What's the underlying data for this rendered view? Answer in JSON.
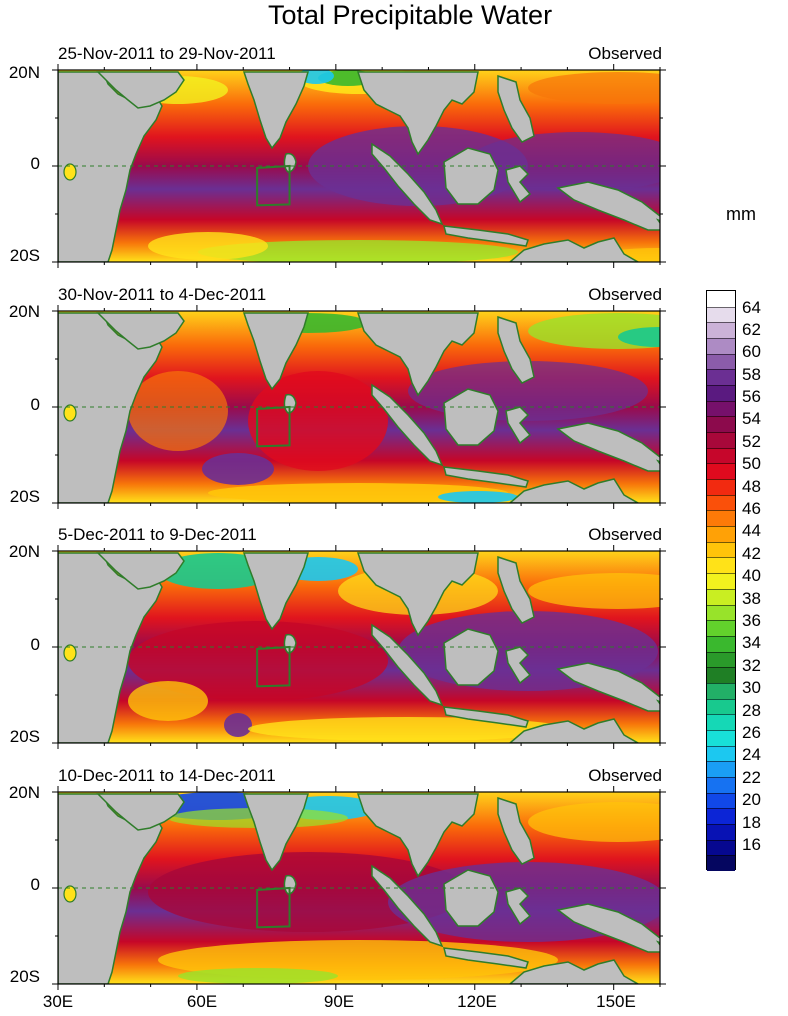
{
  "title": "Total Precipitable Water",
  "units": "mm",
  "panels": [
    {
      "date_range": "25-Nov-2011 to 29-Nov-2011",
      "label": "Observed"
    },
    {
      "date_range": "30-Nov-2011 to 4-Dec-2011",
      "label": "Observed"
    },
    {
      "date_range": "5-Dec-2011 to 9-Dec-2011",
      "label": "Observed"
    },
    {
      "date_range": "10-Dec-2011 to 14-Dec-2011",
      "label": "Observed"
    }
  ],
  "lat_labels": [
    "20N",
    "0",
    "20S"
  ],
  "lon_labels": [
    "30E",
    "60E",
    "90E",
    "120E",
    "150E"
  ],
  "colorbar": {
    "labels": [
      "64",
      "62",
      "60",
      "58",
      "56",
      "54",
      "52",
      "50",
      "48",
      "46",
      "44",
      "42",
      "40",
      "38",
      "36",
      "34",
      "32",
      "30",
      "28",
      "26",
      "24",
      "22",
      "20",
      "18",
      "16"
    ],
    "colors": [
      "#ffffff",
      "#e6dcec",
      "#cbb2d8",
      "#ad8bc4",
      "#8b5caa",
      "#6b2f93",
      "#5a1a80",
      "#76106b",
      "#8c0a4c",
      "#a8083a",
      "#c6062b",
      "#e00a1e",
      "#f22a10",
      "#fa500a",
      "#fd7a08",
      "#ffa106",
      "#ffc40a",
      "#ffe218",
      "#f2f21e",
      "#c9ee22",
      "#98e32a",
      "#62d12c",
      "#3ab82e",
      "#2a9a2a",
      "#1f7f25",
      "#22b067",
      "#18c98e",
      "#15d8b6",
      "#18e0d8",
      "#1cc8f0",
      "#1a9ef5",
      "#1672f2",
      "#1148e8",
      "#0c25d6",
      "#0812b4",
      "#060890",
      "#050660"
    ]
  },
  "map": {
    "lon_range": [
      30,
      160
    ],
    "lat_range": [
      -20,
      20
    ],
    "target_box": {
      "lon": [
        73,
        80
      ],
      "lat": [
        -8,
        0
      ]
    }
  }
}
